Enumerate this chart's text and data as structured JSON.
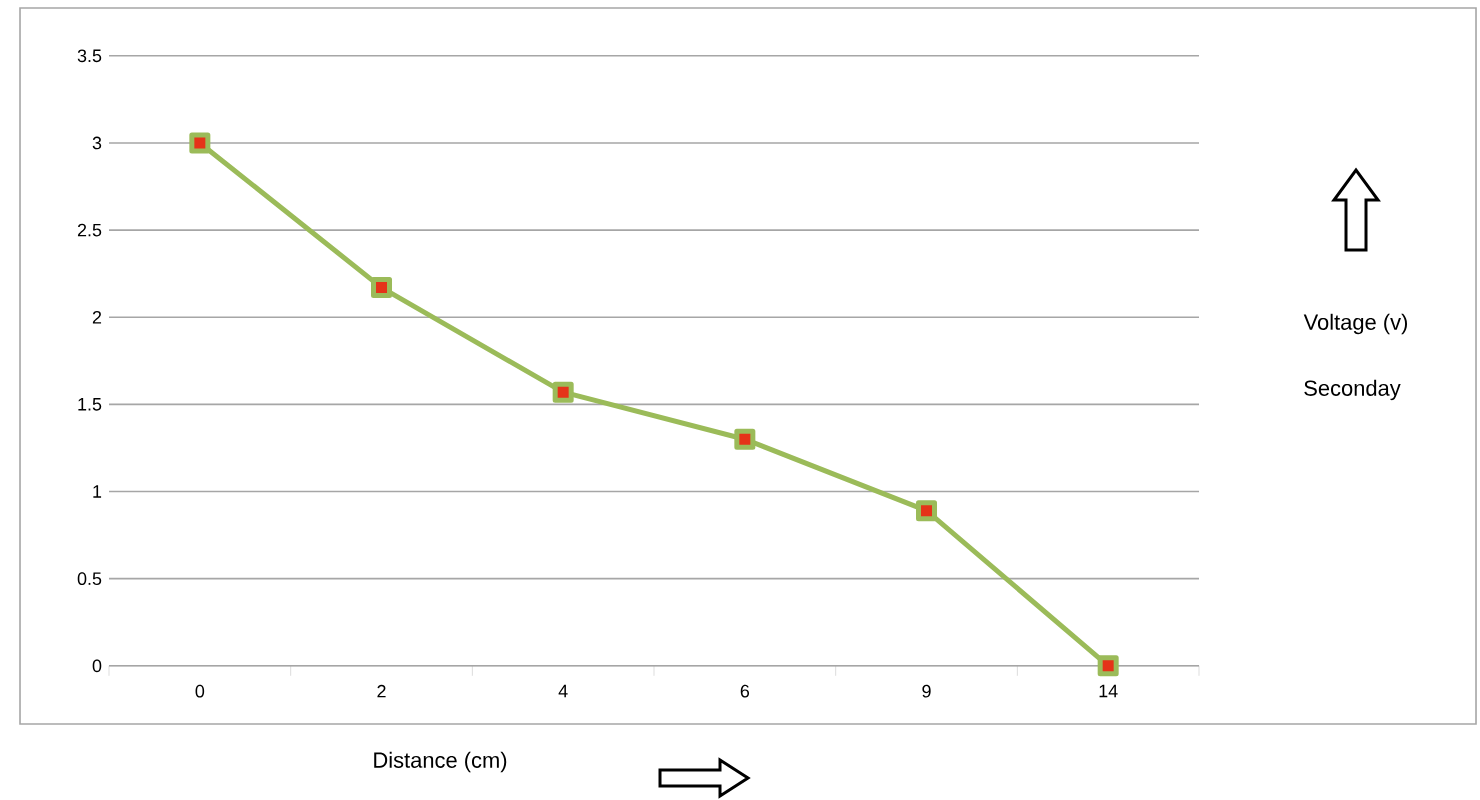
{
  "chart_data": {
    "type": "line",
    "categories": [
      "0",
      "2",
      "4",
      "6",
      "9",
      "14"
    ],
    "series": [
      {
        "color": "#9bbb59",
        "values": [
          3,
          2.17,
          1.57,
          1.3,
          0.89,
          0
        ]
      }
    ],
    "ylim": [
      0,
      3.5
    ],
    "yticks": [
      0,
      0.5,
      1,
      1.5,
      2,
      2.5,
      3,
      3.5
    ],
    "xlabel": "Distance (cm)",
    "ylabel": "Voltage (v)",
    "annotations": [
      "Seconday"
    ],
    "grid": "y",
    "marker": "square",
    "line_style": "solid"
  }
}
